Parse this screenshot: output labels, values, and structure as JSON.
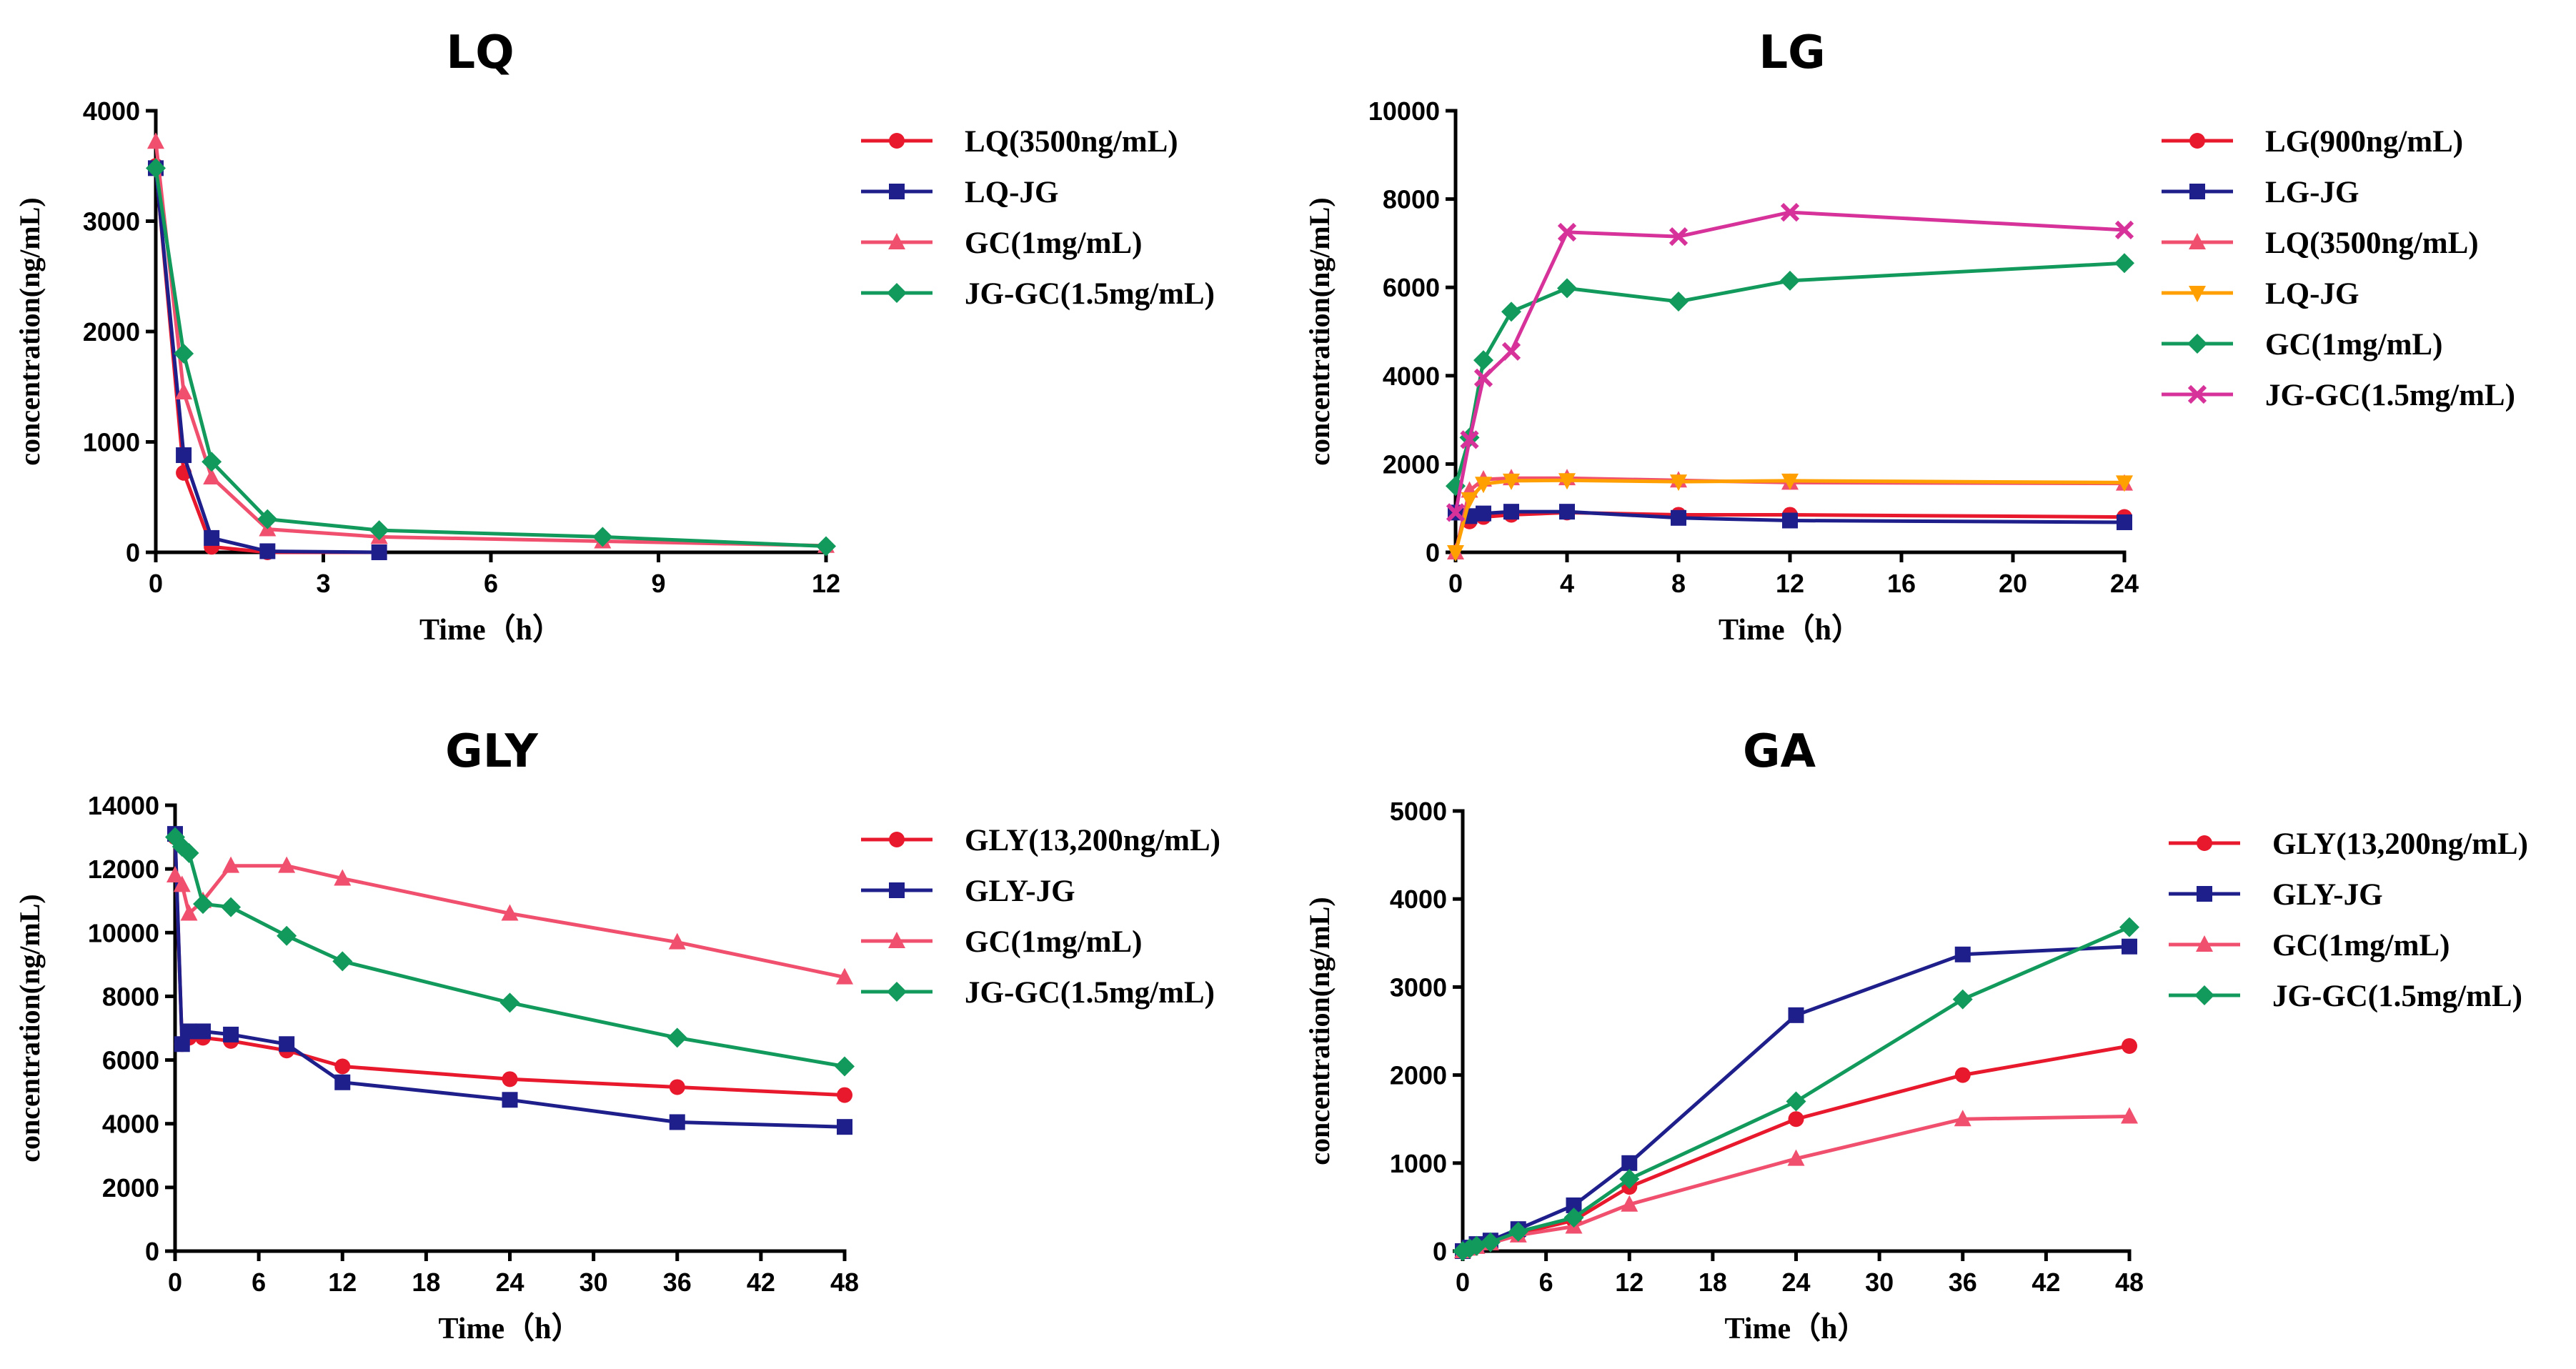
{
  "chart_data": [
    {
      "type": "line",
      "title": "LQ",
      "xlabel": "Time（h）",
      "ylabel": "concentration(ng/mL)",
      "xlim": [
        0,
        12
      ],
      "ylim": [
        0,
        4000
      ],
      "xticks": [
        0,
        3,
        6,
        9,
        12
      ],
      "yticks": [
        0,
        1000,
        2000,
        3000,
        4000
      ],
      "xtick_labels": [
        "0",
        "3",
        "6",
        "9",
        "12"
      ],
      "ytick_labels": [
        "0",
        "1000",
        "2000",
        "3000",
        "4000"
      ],
      "legend_position": "right",
      "series": [
        {
          "name": "LQ(3500ng/mL)",
          "color": "#e8192c",
          "marker": "circle",
          "x": [
            0,
            0.5,
            1,
            2,
            4
          ],
          "y": [
            3500,
            720,
            50,
            0,
            0
          ]
        },
        {
          "name": "LQ-JG",
          "color": "#1f1f8c",
          "marker": "square",
          "x": [
            0,
            0.5,
            1,
            2,
            4
          ],
          "y": [
            3480,
            880,
            130,
            10,
            0
          ]
        },
        {
          "name": "GC(1mg/mL)",
          "color": "#f0506e",
          "marker": "triangle",
          "x": [
            0,
            0.5,
            1,
            2,
            4,
            8,
            12
          ],
          "y": [
            3720,
            1450,
            680,
            210,
            140,
            100,
            60
          ]
        },
        {
          "name": "JG-GC(1.5mg/mL)",
          "color": "#129a5c",
          "marker": "diamond",
          "x": [
            0,
            0.5,
            1,
            2,
            4,
            8,
            12
          ],
          "y": [
            3480,
            1800,
            820,
            300,
            200,
            140,
            55
          ]
        }
      ]
    },
    {
      "type": "line",
      "title": "LG",
      "xlabel": "Time（h）",
      "ylabel": "concentration(ng/mL)",
      "xlim": [
        0,
        24
      ],
      "ylim": [
        0,
        10000
      ],
      "xticks": [
        0,
        4,
        8,
        12,
        16,
        20,
        24
      ],
      "yticks": [
        0,
        2000,
        4000,
        6000,
        8000,
        10000
      ],
      "xtick_labels": [
        "0",
        "4",
        "8",
        "12",
        "16",
        "20",
        "24"
      ],
      "ytick_labels": [
        "0",
        "2000",
        "4000",
        "6000",
        "8000",
        "10000"
      ],
      "legend_position": "right",
      "series": [
        {
          "name": "LG(900ng/mL)",
          "color": "#e8192c",
          "marker": "circle",
          "x": [
            0,
            0.5,
            1,
            2,
            4,
            8,
            12,
            24
          ],
          "y": [
            900,
            700,
            800,
            850,
            900,
            850,
            850,
            800
          ]
        },
        {
          "name": "LG-JG",
          "color": "#1f1f8c",
          "marker": "square",
          "x": [
            0,
            0.5,
            1,
            2,
            4,
            8,
            12,
            24
          ],
          "y": [
            900,
            820,
            880,
            920,
            920,
            780,
            720,
            680
          ]
        },
        {
          "name": "LQ(3500ng/mL)",
          "color": "#f0506e",
          "marker": "triangle",
          "x": [
            0,
            0.5,
            1,
            2,
            4,
            8,
            12,
            24
          ],
          "y": [
            0,
            1400,
            1650,
            1680,
            1680,
            1630,
            1580,
            1560
          ]
        },
        {
          "name": "LQ-JG",
          "color": "#ffa000",
          "marker": "triangle-down",
          "x": [
            0,
            0.5,
            1,
            2,
            4,
            8,
            12,
            24
          ],
          "y": [
            0,
            1200,
            1550,
            1620,
            1630,
            1600,
            1620,
            1580
          ]
        },
        {
          "name": "GC(1mg/mL)",
          "color": "#129a5c",
          "marker": "diamond",
          "x": [
            0,
            0.5,
            1,
            2,
            4,
            8,
            12,
            24
          ],
          "y": [
            1500,
            2600,
            4350,
            5450,
            5980,
            5680,
            6150,
            6550
          ]
        },
        {
          "name": "JG-GC(1.5mg/mL)",
          "color": "#d6329a",
          "marker": "cross",
          "x": [
            0,
            0.5,
            1,
            2,
            4,
            8,
            12,
            24
          ],
          "y": [
            900,
            2550,
            3950,
            4550,
            7250,
            7150,
            7700,
            7300
          ]
        }
      ]
    },
    {
      "type": "line",
      "title": "GLY",
      "xlabel": "Time（h）",
      "ylabel": "concentration(ng/mL)",
      "xlim": [
        0,
        48
      ],
      "ylim": [
        0,
        14000
      ],
      "xticks": [
        0,
        6,
        12,
        18,
        24,
        30,
        36,
        42,
        48
      ],
      "yticks": [
        0,
        2000,
        4000,
        6000,
        8000,
        10000,
        12000,
        14000
      ],
      "xtick_labels": [
        "0",
        "6",
        "12",
        "18",
        "24",
        "30",
        "36",
        "42",
        "48"
      ],
      "ytick_labels": [
        "0",
        "2000",
        "4000",
        "6000",
        "8000",
        "10000",
        "12000",
        "14000"
      ],
      "legend_position": "right",
      "series": [
        {
          "name": "GLY(13,200ng/mL)",
          "color": "#e8192c",
          "marker": "circle",
          "x": [
            0,
            0.5,
            1,
            2,
            4,
            8,
            12,
            24,
            36,
            48
          ],
          "y": [
            13000,
            6500,
            6700,
            6700,
            6600,
            6300,
            5800,
            5400,
            5150,
            4900
          ]
        },
        {
          "name": "GLY-JG",
          "color": "#1f1f8c",
          "marker": "square",
          "x": [
            0,
            0.5,
            1,
            2,
            4,
            8,
            12,
            24,
            36,
            48
          ],
          "y": [
            13100,
            6500,
            6900,
            6900,
            6800,
            6500,
            5300,
            4750,
            4050,
            3900
          ]
        },
        {
          "name": "GC(1mg/mL)",
          "color": "#f0506e",
          "marker": "triangle",
          "x": [
            0,
            0.5,
            1,
            2,
            4,
            8,
            12,
            24,
            36,
            48
          ],
          "y": [
            11800,
            11500,
            10600,
            11000,
            12100,
            12100,
            11700,
            10600,
            9700,
            8600
          ]
        },
        {
          "name": "JG-GC(1.5mg/mL)",
          "color": "#129a5c",
          "marker": "diamond",
          "x": [
            0,
            0.5,
            1,
            2,
            4,
            8,
            12,
            24,
            36,
            48
          ],
          "y": [
            13000,
            12700,
            12500,
            10900,
            10800,
            9900,
            9100,
            7800,
            6700,
            5800
          ]
        }
      ]
    },
    {
      "type": "line",
      "title": "GA",
      "xlabel": "Time（h）",
      "ylabel": "concentration(ng/mL)",
      "xlim": [
        0,
        48
      ],
      "ylim": [
        0,
        5000
      ],
      "xticks": [
        0,
        6,
        12,
        18,
        24,
        30,
        36,
        42,
        48
      ],
      "yticks": [
        0,
        1000,
        2000,
        3000,
        4000,
        5000
      ],
      "xtick_labels": [
        "0",
        "6",
        "12",
        "18",
        "24",
        "30",
        "36",
        "42",
        "48"
      ],
      "ytick_labels": [
        "0",
        "1000",
        "2000",
        "3000",
        "4000",
        "5000"
      ],
      "legend_position": "right",
      "series": [
        {
          "name": "GLY(13,200ng/mL)",
          "color": "#e8192c",
          "marker": "circle",
          "x": [
            0,
            0.5,
            1,
            2,
            4,
            8,
            12,
            24,
            36,
            48
          ],
          "y": [
            0,
            30,
            60,
            100,
            200,
            350,
            730,
            1500,
            2000,
            2330
          ]
        },
        {
          "name": "GLY-JG",
          "color": "#1f1f8c",
          "marker": "square",
          "x": [
            0,
            0.5,
            1,
            2,
            4,
            8,
            12,
            24,
            36,
            48
          ],
          "y": [
            0,
            40,
            80,
            120,
            250,
            520,
            1000,
            2680,
            3370,
            3460
          ]
        },
        {
          "name": "GC(1mg/mL)",
          "color": "#f0506e",
          "marker": "triangle",
          "x": [
            0,
            0.5,
            1,
            2,
            4,
            8,
            12,
            24,
            36,
            48
          ],
          "y": [
            0,
            30,
            50,
            90,
            180,
            280,
            530,
            1050,
            1500,
            1530
          ]
        },
        {
          "name": "JG-GC(1.5mg/mL)",
          "color": "#129a5c",
          "marker": "diamond",
          "x": [
            0,
            0.5,
            1,
            2,
            4,
            8,
            12,
            24,
            36,
            48
          ],
          "y": [
            0,
            30,
            60,
            100,
            220,
            380,
            820,
            1700,
            2860,
            3680
          ]
        }
      ]
    }
  ]
}
